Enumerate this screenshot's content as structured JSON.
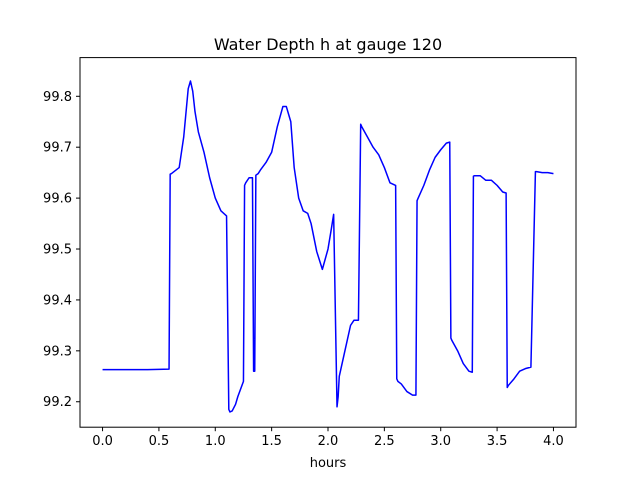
{
  "chart_data": {
    "type": "line",
    "title": "Water Depth h at gauge 120",
    "xlabel": "hours",
    "ylabel": "",
    "xlim": [
      -0.2,
      4.2
    ],
    "ylim": [
      99.15,
      99.876
    ],
    "xticks": [
      0.0,
      0.5,
      1.0,
      1.5,
      2.0,
      2.5,
      3.0,
      3.5,
      4.0
    ],
    "xtick_labels": [
      "0.0",
      "0.5",
      "1.0",
      "1.5",
      "2.0",
      "2.5",
      "3.0",
      "3.5",
      "4.0"
    ],
    "yticks": [
      99.2,
      99.3,
      99.4,
      99.5,
      99.6,
      99.7,
      99.8
    ],
    "ytick_labels": [
      "99.2",
      "99.3",
      "99.4",
      "99.5",
      "99.6",
      "99.7",
      "99.8"
    ],
    "grid": false,
    "series": [
      {
        "name": "",
        "color": "#0000ff",
        "x": [
          0.0,
          0.2,
          0.4,
          0.59,
          0.6,
          0.61,
          0.68,
          0.72,
          0.76,
          0.78,
          0.8,
          0.82,
          0.85,
          0.9,
          0.95,
          1.0,
          1.05,
          1.1,
          1.12,
          1.13,
          1.15,
          1.18,
          1.2,
          1.25,
          1.26,
          1.27,
          1.3,
          1.33,
          1.34,
          1.35,
          1.36,
          1.38,
          1.4,
          1.45,
          1.5,
          1.55,
          1.6,
          1.63,
          1.65,
          1.67,
          1.7,
          1.74,
          1.78,
          1.82,
          1.85,
          1.9,
          1.95,
          2.0,
          2.03,
          2.05,
          2.08,
          2.09,
          2.1,
          2.15,
          2.2,
          2.23,
          2.25,
          2.27,
          2.29,
          2.3,
          2.35,
          2.4,
          2.45,
          2.5,
          2.55,
          2.6,
          2.61,
          2.62,
          2.65,
          2.7,
          2.75,
          2.78,
          2.79,
          2.8,
          2.85,
          2.9,
          2.95,
          3.0,
          3.05,
          3.08,
          3.09,
          3.1,
          3.15,
          3.2,
          3.25,
          3.28,
          3.29,
          3.3,
          3.35,
          3.4,
          3.45,
          3.5,
          3.55,
          3.58,
          3.59,
          3.6,
          3.65,
          3.7,
          3.75,
          3.8,
          3.84,
          3.85,
          3.9,
          3.95,
          4.0
        ],
        "y": [
          99.263,
          99.263,
          99.263,
          99.264,
          99.647,
          99.648,
          99.66,
          99.72,
          99.815,
          99.83,
          99.81,
          99.77,
          99.73,
          99.69,
          99.64,
          99.6,
          99.575,
          99.565,
          99.185,
          99.18,
          99.182,
          99.195,
          99.21,
          99.24,
          99.625,
          99.63,
          99.64,
          99.64,
          99.26,
          99.26,
          99.645,
          99.648,
          99.655,
          99.67,
          99.69,
          99.74,
          99.78,
          99.78,
          99.765,
          99.75,
          99.66,
          99.6,
          99.575,
          99.57,
          99.55,
          99.495,
          99.46,
          99.5,
          99.54,
          99.568,
          99.19,
          99.21,
          99.25,
          99.3,
          99.35,
          99.36,
          99.36,
          99.36,
          99.745,
          99.74,
          99.72,
          99.7,
          99.685,
          99.66,
          99.63,
          99.625,
          99.245,
          99.24,
          99.235,
          99.22,
          99.213,
          99.213,
          99.595,
          99.6,
          99.625,
          99.655,
          99.68,
          99.695,
          99.708,
          99.71,
          99.325,
          99.32,
          99.3,
          99.275,
          99.26,
          99.258,
          99.643,
          99.644,
          99.644,
          99.635,
          99.635,
          99.625,
          99.612,
          99.61,
          99.228,
          99.232,
          99.245,
          99.26,
          99.265,
          99.268,
          99.652,
          99.652,
          99.65,
          99.65,
          99.648
        ]
      }
    ]
  }
}
